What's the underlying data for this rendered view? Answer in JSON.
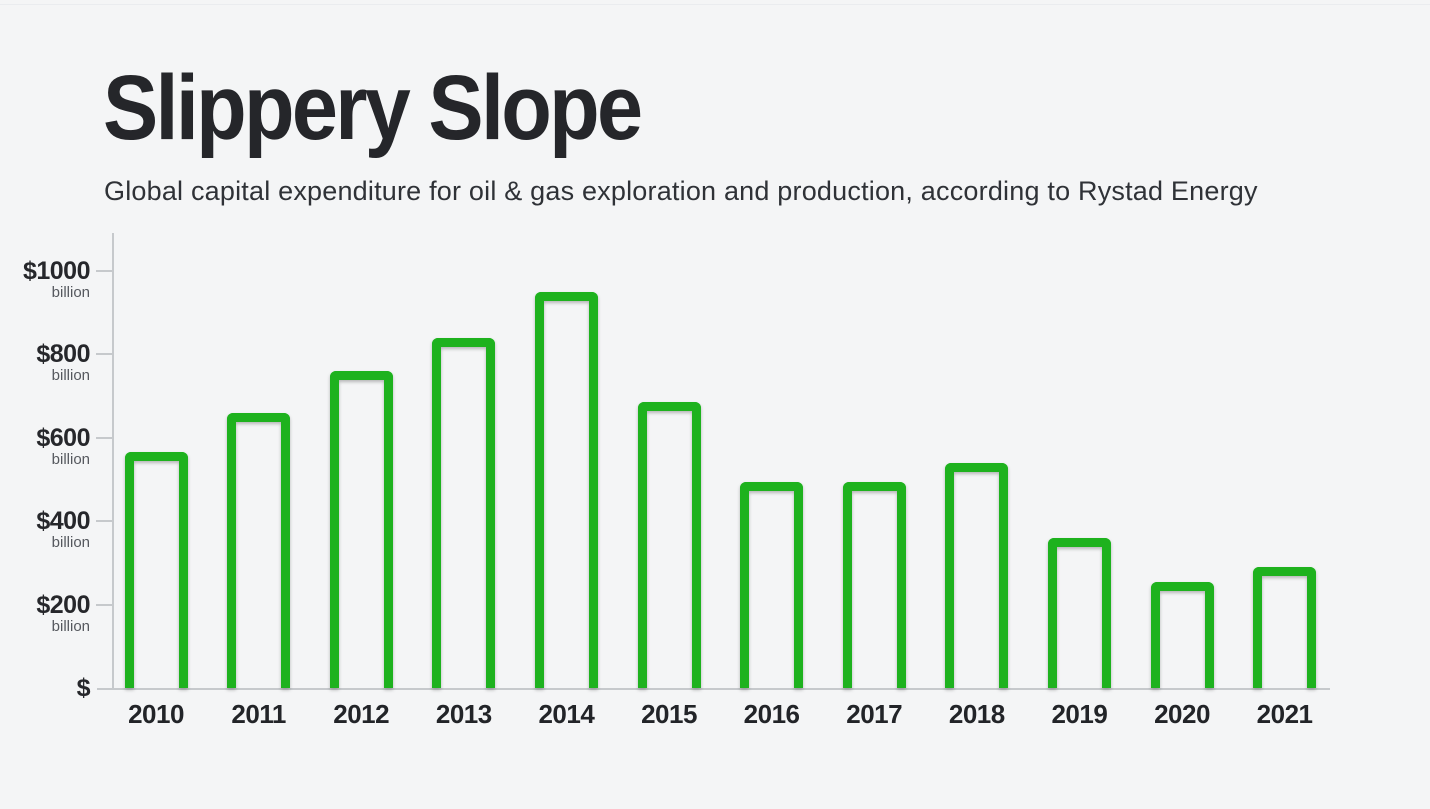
{
  "page": {
    "title": "Slippery Slope",
    "subtitle": "Global capital expenditure for oil & gas exploration and production, according to Rystad Energy"
  },
  "colors": {
    "background": "#f4f5f6",
    "bar_outline_green": "#1eb21e",
    "axis_gray": "#c6c9cc",
    "title_text": "#25262a",
    "subtitle_text": "#2f3237",
    "tick_money_text": "#26272b",
    "tick_unit_text": "#55585e",
    "year_label_text": "#222428"
  },
  "chart_data": {
    "type": "bar",
    "title": "Slippery Slope",
    "subtitle": "Global capital expenditure for oil & gas exploration and production, according to Rystad Energy",
    "categories": [
      "2010",
      "2011",
      "2012",
      "2013",
      "2014",
      "2015",
      "2016",
      "2017",
      "2018",
      "2019",
      "2020",
      "2021"
    ],
    "values": [
      565,
      660,
      760,
      840,
      950,
      685,
      495,
      495,
      540,
      360,
      255,
      290
    ],
    "unit": "billion",
    "currency": "$",
    "xlabel": "",
    "ylabel": "",
    "ylim": [
      0,
      1000
    ],
    "grid": false,
    "legend": false,
    "bar_style": "hollow-outline",
    "y_ticks": [
      {
        "money": "$1000",
        "unit": "billion",
        "value": 1000
      },
      {
        "money": "$800",
        "unit": "billion",
        "value": 800
      },
      {
        "money": "$600",
        "unit": "billion",
        "value": 600
      },
      {
        "money": "$400",
        "unit": "billion",
        "value": 400
      },
      {
        "money": "$200",
        "unit": "billion",
        "value": 200
      },
      {
        "money": "$",
        "unit": "",
        "value": 0
      }
    ]
  }
}
